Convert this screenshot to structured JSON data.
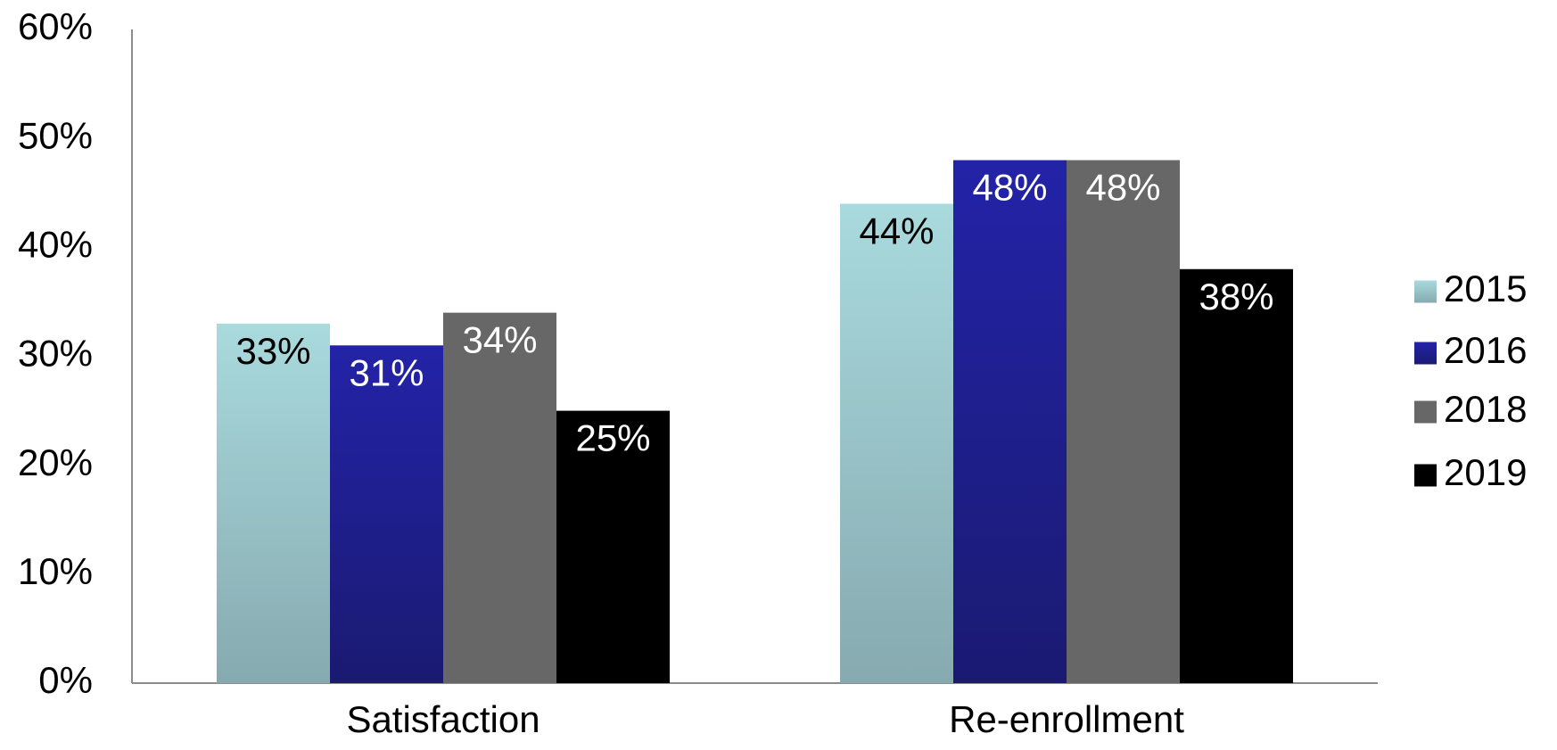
{
  "chart_data": {
    "type": "bar",
    "title": "",
    "xlabel": "",
    "ylabel": "",
    "categories": [
      "Satisfaction",
      "Re-enrollment"
    ],
    "series": [
      {
        "name": "2015",
        "values": [
          33,
          44
        ],
        "color": "#a9dadd",
        "color_bottom": "#86aab0",
        "label_color": "#000000"
      },
      {
        "name": "2016",
        "values": [
          31,
          48
        ],
        "color": "#2323a8",
        "color_bottom": "#1a1a72",
        "label_color": "#ffffff"
      },
      {
        "name": "2018",
        "values": [
          34,
          48
        ],
        "color": "#676767",
        "color_bottom": "#676767",
        "label_color": "#ffffff"
      },
      {
        "name": "2019",
        "values": [
          25,
          38
        ],
        "color": "#000000",
        "color_bottom": "#000000",
        "label_color": "#ffffff"
      }
    ],
    "data_labels": [
      [
        "33%",
        "44%"
      ],
      [
        "31%",
        "48%"
      ],
      [
        "34%",
        "48%"
      ],
      [
        "25%",
        "38%"
      ]
    ],
    "y_ticks": [
      "0%",
      "10%",
      "20%",
      "30%",
      "40%",
      "50%",
      "60%"
    ],
    "ylim": [
      0,
      60
    ],
    "grid": false,
    "legend_position": "right"
  }
}
